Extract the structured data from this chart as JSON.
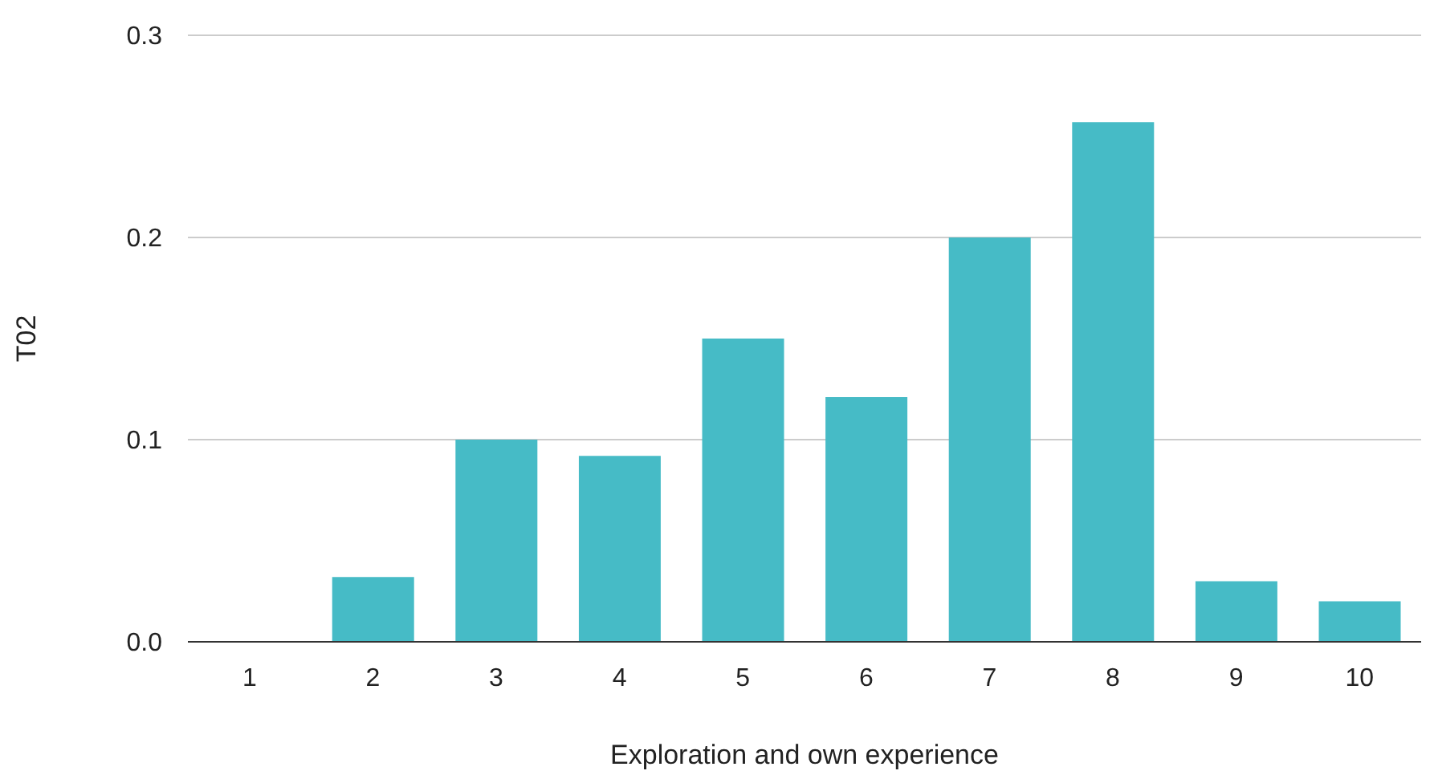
{
  "chart_data": {
    "type": "bar",
    "xlabel": "Exploration and own experience",
    "ylabel": "T02",
    "categories": [
      "1",
      "2",
      "3",
      "4",
      "5",
      "6",
      "7",
      "8",
      "9",
      "10"
    ],
    "values": [
      0,
      0.032,
      0.1,
      0.092,
      0.15,
      0.121,
      0.2,
      0.257,
      0.03,
      0.02
    ],
    "color": "#46bbc6",
    "ylim": [
      0,
      0.3
    ],
    "yticks": [
      {
        "value": 0,
        "label": "0.0"
      },
      {
        "value": 0.1,
        "label": "0.1"
      },
      {
        "value": 0.2,
        "label": "0.2"
      },
      {
        "value": 0.3,
        "label": "0.3"
      }
    ],
    "grid": "y",
    "legend": false
  }
}
